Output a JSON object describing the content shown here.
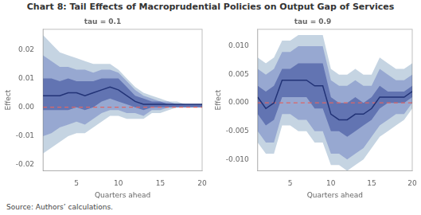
{
  "title": "Chart 8: Tail Effects of Macroprudential Policies on Output Gap of Services",
  "annotations": [
    "Source: Authors’ calculations."
  ],
  "chart_data": [
    {
      "type": "line",
      "title": "tau = 0.1",
      "xlabel": "Quarters ahead",
      "ylabel": "Effect",
      "x": [
        1,
        2,
        3,
        4,
        5,
        6,
        7,
        8,
        9,
        10,
        11,
        12,
        13,
        14,
        15,
        16,
        17,
        18,
        19,
        20
      ],
      "series": [
        {
          "color": "#223377",
          "values": [
            0.004,
            0.004,
            0.004,
            0.005,
            0.005,
            0.004,
            0.005,
            0.006,
            0.007,
            0.006,
            0.004,
            0.002,
            0.001,
            0.001,
            0.001,
            0.001,
            0.001,
            0.001,
            0.001,
            0.001
          ]
        }
      ],
      "bands": [
        {
          "color": "#bbccdd",
          "lower": [
            -0.016,
            -0.014,
            -0.012,
            -0.01,
            -0.009,
            -0.009,
            -0.007,
            -0.005,
            -0.003,
            -0.003,
            -0.004,
            -0.004,
            -0.004,
            -0.002,
            -0.002,
            -0.001,
            0.0,
            0.0,
            0.0,
            0.0
          ],
          "upper": [
            0.025,
            0.022,
            0.019,
            0.018,
            0.017,
            0.016,
            0.015,
            0.015,
            0.015,
            0.013,
            0.01,
            0.007,
            0.005,
            0.004,
            0.003,
            0.002,
            0.002,
            0.001,
            0.001,
            0.001
          ]
        },
        {
          "color": "#8899cc",
          "lower": [
            -0.01,
            -0.009,
            -0.007,
            -0.006,
            -0.005,
            -0.006,
            -0.004,
            -0.002,
            -0.001,
            -0.001,
            -0.002,
            -0.002,
            -0.003,
            -0.001,
            -0.001,
            0.0,
            0.0,
            0.0,
            0.0,
            0.0
          ],
          "upper": [
            0.018,
            0.016,
            0.014,
            0.014,
            0.013,
            0.013,
            0.012,
            0.013,
            0.013,
            0.012,
            0.009,
            0.006,
            0.004,
            0.003,
            0.002,
            0.002,
            0.001,
            0.001,
            0.001,
            0.001
          ]
        },
        {
          "color": "#5566aa",
          "lower": [
            -0.001,
            -0.001,
            -0.001,
            -0.001,
            0.0,
            -0.001,
            0.0,
            0.002,
            0.003,
            0.002,
            0.001,
            0.0,
            -0.001,
            0.0,
            0.0,
            0.0,
            0.0,
            0.0,
            0.0,
            0.0
          ],
          "upper": [
            0.01,
            0.01,
            0.009,
            0.01,
            0.009,
            0.009,
            0.009,
            0.01,
            0.01,
            0.01,
            0.007,
            0.004,
            0.003,
            0.002,
            0.002,
            0.001,
            0.001,
            0.001,
            0.001,
            0.001
          ]
        }
      ],
      "hlines": [
        {
          "value": 0,
          "color": "#dd6666",
          "line_style": "dashed"
        }
      ],
      "xlim": [
        1,
        20
      ],
      "xticks": [
        5,
        10,
        15,
        20
      ],
      "ylim": [
        -0.022,
        0.027
      ],
      "yticks": [
        -0.02,
        -0.01,
        {
          "value": 0,
          "label": "0.00"
        },
        0.01,
        0.02
      ],
      "grid": false,
      "legend": false
    },
    {
      "type": "line",
      "title": "tau = 0.9",
      "xlabel": "Quarters ahead",
      "ylabel": "Effect",
      "x": [
        1,
        2,
        3,
        4,
        5,
        6,
        7,
        8,
        9,
        10,
        11,
        12,
        13,
        14,
        15,
        16,
        17,
        18,
        19,
        20
      ],
      "series": [
        {
          "color": "#223377",
          "values": [
            0.001,
            -0.001,
            0.0,
            0.004,
            0.004,
            0.004,
            0.004,
            0.003,
            0.003,
            -0.002,
            -0.003,
            -0.003,
            -0.002,
            -0.002,
            -0.001,
            0.001,
            0.001,
            0.001,
            0.001,
            0.002
          ]
        }
      ],
      "bands": [
        {
          "color": "#bbccdd",
          "lower": [
            -0.007,
            -0.009,
            -0.009,
            -0.004,
            -0.004,
            -0.005,
            -0.005,
            -0.007,
            -0.007,
            -0.011,
            -0.011,
            -0.012,
            -0.011,
            -0.01,
            -0.008,
            -0.006,
            -0.005,
            -0.004,
            -0.003,
            -0.001
          ],
          "upper": [
            0.008,
            0.007,
            0.008,
            0.011,
            0.011,
            0.012,
            0.012,
            0.012,
            0.012,
            0.006,
            0.005,
            0.005,
            0.006,
            0.005,
            0.005,
            0.008,
            0.007,
            0.006,
            0.006,
            0.007
          ]
        },
        {
          "color": "#8899cc",
          "lower": [
            -0.005,
            -0.007,
            -0.007,
            -0.002,
            -0.002,
            -0.003,
            -0.003,
            -0.005,
            -0.005,
            -0.009,
            -0.009,
            -0.01,
            -0.009,
            -0.008,
            -0.006,
            -0.004,
            -0.003,
            -0.002,
            -0.002,
            0.0
          ],
          "upper": [
            0.006,
            0.005,
            0.006,
            0.009,
            0.009,
            0.01,
            0.01,
            0.01,
            0.01,
            0.004,
            0.003,
            0.003,
            0.004,
            0.003,
            0.003,
            0.006,
            0.005,
            0.004,
            0.004,
            0.005
          ]
        },
        {
          "color": "#5566aa",
          "lower": [
            -0.002,
            -0.004,
            -0.003,
            0.001,
            0.001,
            0.001,
            0.001,
            -0.001,
            -0.001,
            -0.005,
            -0.005,
            -0.006,
            -0.005,
            -0.004,
            -0.003,
            -0.001,
            0.0,
            0.0,
            0.0,
            0.001
          ],
          "upper": [
            0.003,
            0.002,
            0.003,
            0.006,
            0.006,
            0.007,
            0.007,
            0.007,
            0.007,
            0.001,
            0.0,
            0.0,
            0.001,
            0.0,
            0.001,
            0.003,
            0.002,
            0.002,
            0.002,
            0.003
          ]
        }
      ],
      "hlines": [
        {
          "value": 0,
          "color": "#dd6666",
          "line_style": "dashed"
        }
      ],
      "xlim": [
        1,
        20
      ],
      "xticks": [
        5,
        10,
        15,
        20
      ],
      "ylim": [
        -0.012,
        0.013
      ],
      "yticks": [
        {
          "value": -0.01,
          "label": "-0.010"
        },
        -0.005,
        {
          "value": 0,
          "label": "0.000"
        },
        0.005,
        {
          "value": 0.01,
          "label": "0.010"
        }
      ],
      "grid": false,
      "legend": false
    }
  ]
}
